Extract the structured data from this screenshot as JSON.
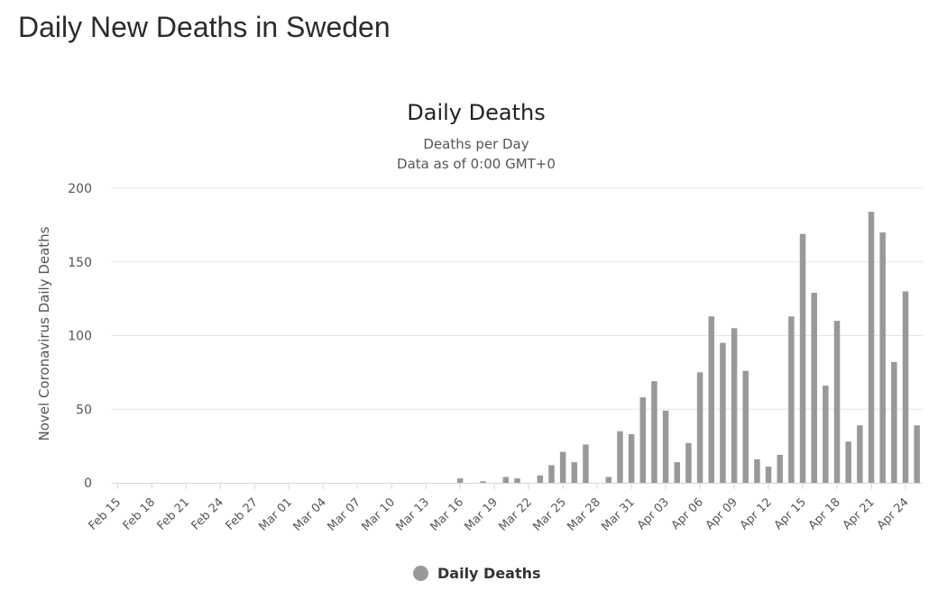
{
  "page": {
    "heading": "Daily New Deaths in Sweden"
  },
  "chart_data": {
    "type": "bar",
    "title": "Daily Deaths",
    "subtitle": "Deaths per Day",
    "subtitle2": "Data as of 0:00 GMT+0",
    "ylabel": "Novel Coronavirus Daily Deaths",
    "xlabel": "",
    "ylim": [
      0,
      200
    ],
    "yticks": [
      0,
      50,
      100,
      150,
      200
    ],
    "grid": true,
    "legend_position": "bottom-center",
    "bar_color": "#999999",
    "categories": [
      "Feb 15",
      "Feb 16",
      "Feb 17",
      "Feb 18",
      "Feb 19",
      "Feb 20",
      "Feb 21",
      "Feb 22",
      "Feb 23",
      "Feb 24",
      "Feb 25",
      "Feb 26",
      "Feb 27",
      "Feb 28",
      "Feb 29",
      "Mar 01",
      "Mar 02",
      "Mar 03",
      "Mar 04",
      "Mar 05",
      "Mar 06",
      "Mar 07",
      "Mar 08",
      "Mar 09",
      "Mar 10",
      "Mar 11",
      "Mar 12",
      "Mar 13",
      "Mar 14",
      "Mar 15",
      "Mar 16",
      "Mar 17",
      "Mar 18",
      "Mar 19",
      "Mar 20",
      "Mar 21",
      "Mar 22",
      "Mar 23",
      "Mar 24",
      "Mar 25",
      "Mar 26",
      "Mar 27",
      "Mar 28",
      "Mar 29",
      "Mar 30",
      "Mar 31",
      "Apr 01",
      "Apr 02",
      "Apr 03",
      "Apr 04",
      "Apr 05",
      "Apr 06",
      "Apr 07",
      "Apr 08",
      "Apr 09",
      "Apr 10",
      "Apr 11",
      "Apr 12",
      "Apr 13",
      "Apr 14",
      "Apr 15",
      "Apr 16",
      "Apr 17",
      "Apr 18",
      "Apr 19",
      "Apr 20",
      "Apr 21",
      "Apr 22",
      "Apr 23",
      "Apr 24",
      "Apr 25"
    ],
    "tick_labels": [
      "Feb 15",
      "Feb 18",
      "Feb 21",
      "Feb 24",
      "Feb 27",
      "Mar 01",
      "Mar 04",
      "Mar 07",
      "Mar 10",
      "Mar 13",
      "Mar 16",
      "Mar 19",
      "Mar 22",
      "Mar 25",
      "Mar 28",
      "Mar 31",
      "Apr 03",
      "Apr 06",
      "Apr 09",
      "Apr 12",
      "Apr 15",
      "Apr 18",
      "Apr 21",
      "Apr 24"
    ],
    "series": [
      {
        "name": "Daily Deaths",
        "values": [
          0,
          0,
          0,
          0,
          0,
          0,
          0,
          0,
          0,
          0,
          0,
          0,
          0,
          0,
          0,
          0,
          0,
          0,
          0,
          0,
          0,
          0,
          0,
          0,
          0,
          0,
          0,
          0,
          0,
          0,
          3,
          0,
          1,
          0,
          4,
          3,
          0,
          5,
          12,
          21,
          14,
          26,
          0,
          4,
          35,
          33,
          58,
          69,
          49,
          14,
          27,
          75,
          113,
          95,
          105,
          76,
          16,
          11,
          19,
          113,
          169,
          129,
          66,
          110,
          28,
          39,
          184,
          170,
          82,
          130,
          39
        ]
      }
    ]
  },
  "legend": {
    "label": "Daily Deaths",
    "color": "#999999"
  }
}
